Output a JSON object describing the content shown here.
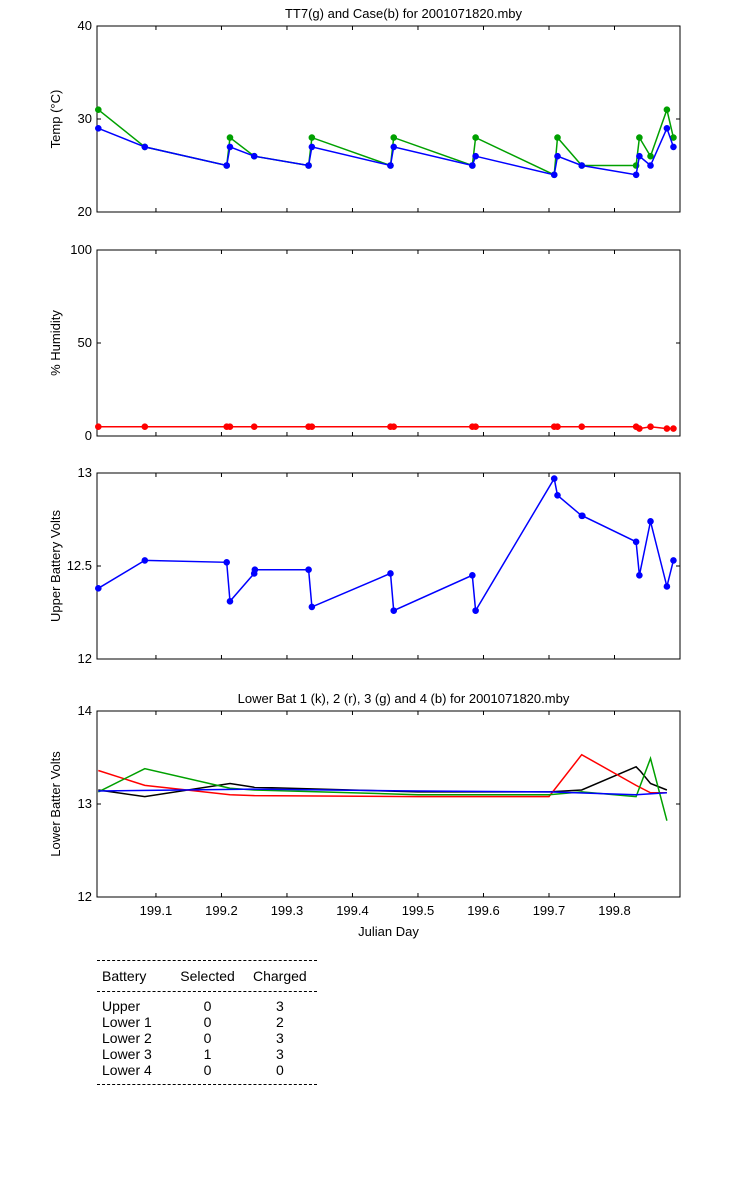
{
  "chart_data": [
    {
      "type": "line",
      "title": "TT7(g) and Case(b) for 2001071820.mby",
      "xlabel": "",
      "ylabel": "Temp  (°C)",
      "xlim": [
        199.01,
        199.9
      ],
      "ylim": [
        20,
        40
      ],
      "yticks": [
        "20",
        "30",
        "40"
      ],
      "series": [
        {
          "name": "TT7",
          "color": "#00a000",
          "marker": true,
          "x": [
            199.012,
            199.083,
            199.208,
            199.213,
            199.25,
            199.333,
            199.338,
            199.458,
            199.463,
            199.583,
            199.588,
            199.708,
            199.713,
            199.75,
            199.833,
            199.838,
            199.855,
            199.88,
            199.89
          ],
          "y": [
            31,
            27,
            25,
            28,
            26,
            25,
            28,
            25,
            28,
            25,
            28,
            24,
            28,
            25,
            25,
            28,
            26,
            31,
            28
          ]
        },
        {
          "name": "Case",
          "color": "#0000ff",
          "marker": true,
          "x": [
            199.012,
            199.083,
            199.208,
            199.213,
            199.25,
            199.333,
            199.338,
            199.458,
            199.463,
            199.583,
            199.588,
            199.708,
            199.713,
            199.75,
            199.833,
            199.838,
            199.855,
            199.88,
            199.89
          ],
          "y": [
            29,
            27,
            25,
            27,
            26,
            25,
            27,
            25,
            27,
            25,
            26,
            24,
            26,
            25,
            24,
            26,
            25,
            29,
            27
          ]
        }
      ]
    },
    {
      "type": "line",
      "title": "",
      "xlabel": "",
      "ylabel": "% Humidity",
      "xlim": [
        199.01,
        199.9
      ],
      "ylim": [
        0,
        100
      ],
      "yticks": [
        "0",
        "50",
        "100"
      ],
      "series": [
        {
          "name": "Humidity",
          "color": "#ff0000",
          "marker": true,
          "x": [
            199.012,
            199.083,
            199.208,
            199.213,
            199.25,
            199.333,
            199.338,
            199.458,
            199.463,
            199.583,
            199.588,
            199.708,
            199.713,
            199.75,
            199.833,
            199.838,
            199.855,
            199.88,
            199.89
          ],
          "y": [
            5,
            5,
            5,
            5,
            5,
            5,
            5,
            5,
            5,
            5,
            5,
            5,
            5,
            5,
            5,
            4,
            5,
            4,
            4
          ]
        }
      ]
    },
    {
      "type": "line",
      "title": "",
      "xlabel": "",
      "ylabel": "Upper Battery Volts",
      "xlim": [
        199.01,
        199.9
      ],
      "ylim": [
        12,
        13
      ],
      "yticks": [
        "12",
        "12.5",
        "13"
      ],
      "series": [
        {
          "name": "Upper",
          "color": "#0000ff",
          "marker": true,
          "x": [
            199.012,
            199.083,
            199.208,
            199.213,
            199.25,
            199.251,
            199.333,
            199.338,
            199.458,
            199.463,
            199.583,
            199.588,
            199.708,
            199.713,
            199.75,
            199.751,
            199.833,
            199.838,
            199.855,
            199.88,
            199.89
          ],
          "y": [
            12.38,
            12.53,
            12.52,
            12.31,
            12.46,
            12.48,
            12.48,
            12.28,
            12.46,
            12.26,
            12.45,
            12.26,
            12.97,
            12.88,
            12.77,
            12.77,
            12.63,
            12.45,
            12.74,
            12.39,
            12.53
          ]
        }
      ]
    },
    {
      "type": "line",
      "title": "Lower Bat 1 (k), 2 (r), 3 (g) and 4 (b) for 2001071820.mby",
      "xlabel": "Julian Day",
      "ylabel": "Lower Batter Volts",
      "xlim": [
        199.01,
        199.9
      ],
      "ylim": [
        12,
        14
      ],
      "yticks": [
        "12",
        "13",
        "14"
      ],
      "xticks": [
        "199.1",
        "199.2",
        "199.3",
        "199.4",
        "199.5",
        "199.6",
        "199.7",
        "199.8"
      ],
      "series": [
        {
          "name": "Lower 1",
          "color": "#000000",
          "marker": false,
          "x": [
            199.012,
            199.083,
            199.213,
            199.25,
            199.5,
            199.7,
            199.75,
            199.833,
            199.84,
            199.855,
            199.88
          ],
          "y": [
            13.15,
            13.08,
            13.22,
            13.18,
            13.13,
            13.13,
            13.15,
            13.4,
            13.35,
            13.22,
            13.15
          ]
        },
        {
          "name": "Lower 2",
          "color": "#ff0000",
          "marker": false,
          "x": [
            199.012,
            199.083,
            199.213,
            199.25,
            199.5,
            199.7,
            199.75,
            199.833,
            199.855,
            199.88
          ],
          "y": [
            13.36,
            13.2,
            13.1,
            13.09,
            13.08,
            13.08,
            13.53,
            13.2,
            13.12,
            13.12
          ]
        },
        {
          "name": "Lower 3",
          "color": "#00a000",
          "marker": false,
          "x": [
            199.012,
            199.083,
            199.213,
            199.25,
            199.5,
            199.7,
            199.75,
            199.833,
            199.855,
            199.88
          ],
          "y": [
            13.13,
            13.38,
            13.17,
            13.15,
            13.1,
            13.1,
            13.13,
            13.08,
            13.49,
            12.82
          ]
        },
        {
          "name": "Lower 4",
          "color": "#0000ff",
          "marker": false,
          "x": [
            199.012,
            199.25,
            199.5,
            199.7,
            199.833,
            199.88
          ],
          "y": [
            13.14,
            13.16,
            13.14,
            13.13,
            13.1,
            13.12
          ]
        }
      ]
    }
  ],
  "legend_table": {
    "headers": [
      "Battery",
      "Selected",
      "Charged"
    ],
    "rows": [
      [
        "Upper",
        "0",
        "3"
      ],
      [
        "Lower 1",
        "0",
        "2"
      ],
      [
        "Lower 2",
        "0",
        "3"
      ],
      [
        "Lower 3",
        "1",
        "3"
      ],
      [
        "Lower 4",
        "0",
        "0"
      ]
    ]
  }
}
